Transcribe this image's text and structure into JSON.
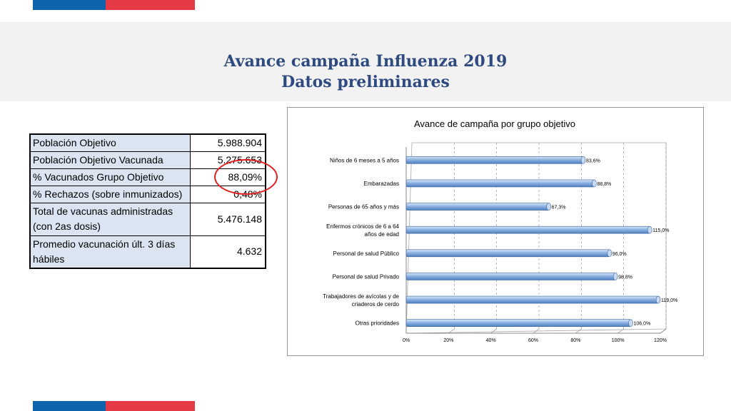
{
  "page": {
    "title_line1": "Avance campaña Influenza 2019",
    "title_line2": "Datos preliminares"
  },
  "brand": {
    "blue": "#0f62ad",
    "red": "#e63946"
  },
  "table": {
    "rows": [
      {
        "label": "Población Objetivo",
        "value": "5.988.904"
      },
      {
        "label": "Población Objetivo Vacunada",
        "value": "5.275.653"
      },
      {
        "label": "% Vacunados Grupo Objetivo",
        "value": "88,09%"
      },
      {
        "label": "% Rechazos (sobre inmunizados)",
        "value": "0,48%"
      },
      {
        "label": "Total de vacunas administradas (con 2as dosis)",
        "value": "5.476.148"
      },
      {
        "label": "Promedio vacunación últ. 3 días hábiles",
        "value": "4.632"
      }
    ]
  },
  "chart_data": {
    "type": "bar",
    "orientation": "horizontal",
    "title": "Avance de campaña por grupo objetivo",
    "categories": [
      "Niños de 6 meses a 5 años",
      "Embarazadas",
      "Personas de 65 años y más",
      "Enfermos crónicos de 6 a 64 años de edad",
      "Personal de salud Público",
      "Personal de salud Privado",
      "Trabajadores de avícolas y de criaderos de cerdo",
      "Otras prioridades"
    ],
    "values": [
      83.6,
      88.8,
      67.3,
      115.0,
      96.0,
      98.8,
      119.0,
      106.0
    ],
    "data_labels": [
      "83,6%",
      "88,8%",
      "67,3%",
      "115,0%",
      "96,0%",
      "98,8%",
      "119,0%",
      "106,0%"
    ],
    "xlim": [
      0,
      120
    ],
    "xticks": [
      "0%",
      "20%",
      "40%",
      "60%",
      "80%",
      "100%",
      "120%"
    ],
    "grid": true,
    "bar_color": "#8db3e2"
  }
}
